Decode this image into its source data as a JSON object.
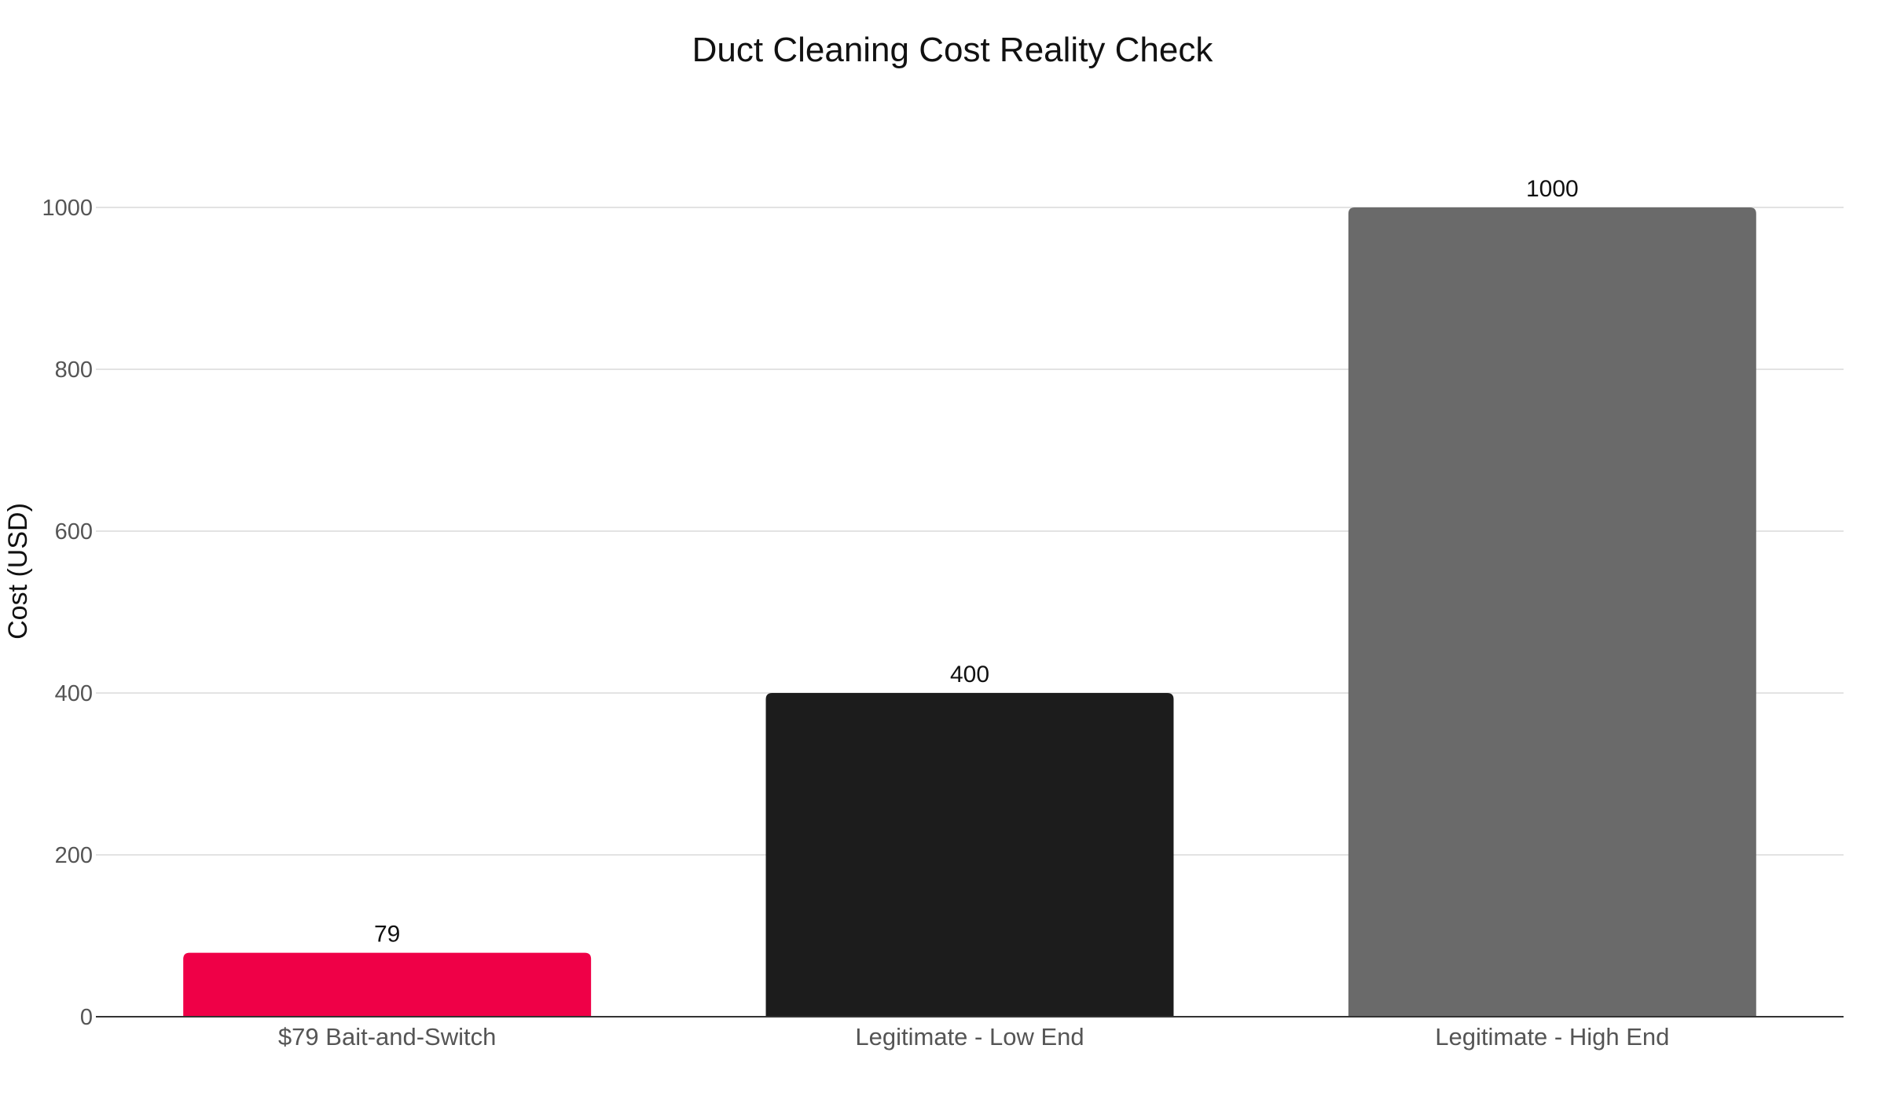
{
  "chart_data": {
    "type": "bar",
    "title": "Duct Cleaning Cost Reality Check",
    "xlabel": "",
    "ylabel": "Cost (USD)",
    "categories": [
      "$79 Bait-and-Switch",
      "Legitimate - Low End",
      "Legitimate - High End"
    ],
    "values": [
      79,
      400,
      1000
    ],
    "data_labels": [
      "79",
      "400",
      "1000"
    ],
    "colors": [
      "#ef0047",
      "#1c1c1c",
      "#6a6a6a"
    ],
    "ylim": [
      0,
      1000
    ],
    "yticks": [
      0,
      200,
      400,
      600,
      800,
      1000
    ],
    "grid": true,
    "legend": "none"
  }
}
